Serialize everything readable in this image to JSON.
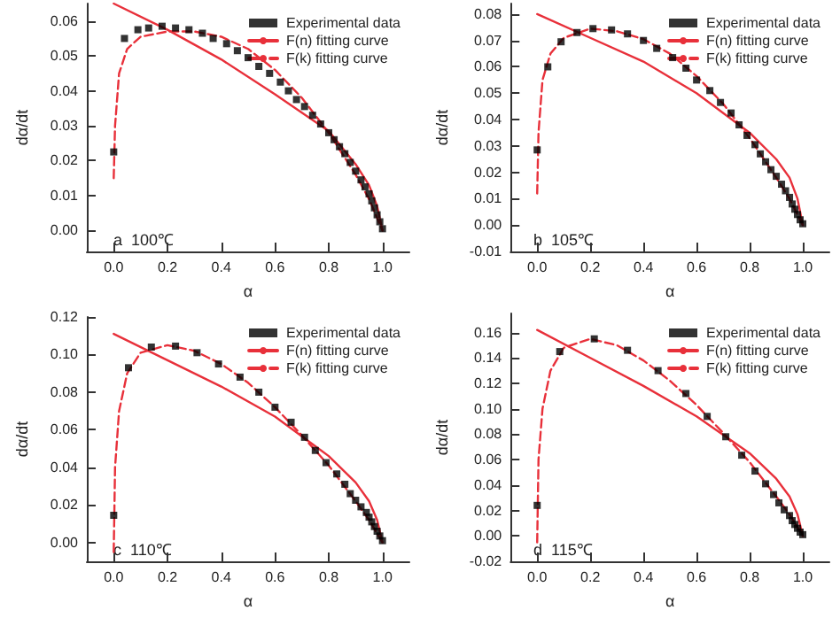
{
  "chart_data": [
    {
      "type": "scatter",
      "xlabel": "α",
      "ylabel": "dα/dt",
      "annotations": [
        "a  100℃"
      ],
      "legend": "top right",
      "grid": false,
      "xlim": [
        -0.1,
        1.1
      ],
      "ylim": [
        -0.006,
        0.065
      ],
      "xticks": [
        {
          "value": 0,
          "label": "0.0"
        },
        {
          "value": 0.2,
          "label": "0.2"
        },
        {
          "value": 0.4,
          "label": "0.4"
        },
        {
          "value": 0.6,
          "label": "0.6"
        },
        {
          "value": 0.8,
          "label": "0.8"
        },
        {
          "value": 1,
          "label": "1.0"
        }
      ],
      "yticks": [
        {
          "value": 0,
          "label": "0.00"
        },
        {
          "value": 0.01,
          "label": "0.01"
        },
        {
          "value": 0.02,
          "label": "0.02"
        },
        {
          "value": 0.03,
          "label": "0.03"
        },
        {
          "value": 0.04,
          "label": "0.04"
        },
        {
          "value": 0.05,
          "label": "0.05"
        },
        {
          "value": 0.06,
          "label": "0.06"
        }
      ],
      "series": [
        {
          "name": "Experimental data",
          "marker": "square",
          "color": "#000000",
          "x": [
            0,
            0.04,
            0.09,
            0.13,
            0.18,
            0.23,
            0.28,
            0.33,
            0.37,
            0.42,
            0.46,
            0.5,
            0.54,
            0.58,
            0.62,
            0.65,
            0.68,
            0.71,
            0.74,
            0.77,
            0.8,
            0.82,
            0.84,
            0.86,
            0.88,
            0.9,
            0.92,
            0.935,
            0.95,
            0.96,
            0.97,
            0.98,
            0.99,
            1.0
          ],
          "values": [
            0.0225,
            0.055,
            0.0575,
            0.058,
            0.0585,
            0.058,
            0.0575,
            0.0565,
            0.055,
            0.0535,
            0.0515,
            0.0495,
            0.047,
            0.045,
            0.0425,
            0.04,
            0.0375,
            0.0355,
            0.033,
            0.0305,
            0.028,
            0.026,
            0.024,
            0.022,
            0.0195,
            0.017,
            0.0145,
            0.0125,
            0.0105,
            0.0085,
            0.0065,
            0.0045,
            0.0025,
            0.0005
          ]
        },
        {
          "name": "F(n) fitting curve",
          "type": "line",
          "marker": "none",
          "line_style": "solid",
          "color": "#e8303a",
          "x": [
            0,
            0.2,
            0.4,
            0.6,
            0.8,
            0.9,
            0.95,
            0.98,
            1.0
          ],
          "values": [
            0.065,
            0.0575,
            0.049,
            0.039,
            0.0285,
            0.019,
            0.013,
            0.007,
            0
          ]
        },
        {
          "name": "F(k) fitting curve",
          "type": "line",
          "marker": "none",
          "line_style": "dashed",
          "color": "#e8303a",
          "x": [
            0,
            0.005,
            0.02,
            0.05,
            0.1,
            0.2,
            0.3,
            0.4,
            0.5,
            0.6,
            0.7,
            0.8,
            0.9,
            0.95,
            1.0
          ],
          "values": [
            0.015,
            0.03,
            0.045,
            0.052,
            0.0555,
            0.057,
            0.057,
            0.0555,
            0.052,
            0.046,
            0.038,
            0.028,
            0.016,
            0.009,
            0
          ]
        }
      ]
    },
    {
      "type": "scatter",
      "xlabel": "α",
      "ylabel": "dα/dt",
      "annotations": [
        "b  105℃"
      ],
      "legend": "top right",
      "grid": false,
      "xlim": [
        -0.1,
        1.1
      ],
      "ylim": [
        -0.01,
        0.084
      ],
      "xticks": [
        {
          "value": 0,
          "label": "0.0"
        },
        {
          "value": 0.2,
          "label": "0.2"
        },
        {
          "value": 0.4,
          "label": "0.4"
        },
        {
          "value": 0.6,
          "label": "0.6"
        },
        {
          "value": 0.8,
          "label": "0.8"
        },
        {
          "value": 1,
          "label": "1.0"
        }
      ],
      "yticks": [
        {
          "value": -0.01,
          "label": "-0.01"
        },
        {
          "value": 0,
          "label": "0.00"
        },
        {
          "value": 0.01,
          "label": "0.01"
        },
        {
          "value": 0.02,
          "label": "0.02"
        },
        {
          "value": 0.03,
          "label": "0.03"
        },
        {
          "value": 0.04,
          "label": "0.04"
        },
        {
          "value": 0.05,
          "label": "0.05"
        },
        {
          "value": 0.06,
          "label": "0.06"
        },
        {
          "value": 0.07,
          "label": "0.07"
        },
        {
          "value": 0.08,
          "label": "0.08"
        }
      ],
      "series": [
        {
          "name": "Experimental data",
          "marker": "square",
          "color": "#000000",
          "x": [
            0,
            0.04,
            0.09,
            0.15,
            0.21,
            0.28,
            0.34,
            0.4,
            0.45,
            0.51,
            0.56,
            0.6,
            0.65,
            0.69,
            0.73,
            0.76,
            0.79,
            0.82,
            0.84,
            0.86,
            0.88,
            0.9,
            0.92,
            0.935,
            0.95,
            0.96,
            0.97,
            0.98,
            0.99,
            1.0
          ],
          "values": [
            0.0285,
            0.06,
            0.0695,
            0.073,
            0.0745,
            0.074,
            0.0725,
            0.07,
            0.067,
            0.0635,
            0.0595,
            0.055,
            0.051,
            0.0465,
            0.0425,
            0.038,
            0.034,
            0.0305,
            0.027,
            0.024,
            0.021,
            0.0185,
            0.0155,
            0.013,
            0.0105,
            0.008,
            0.006,
            0.004,
            0.002,
            0.0005
          ]
        },
        {
          "name": "F(n) fitting curve",
          "type": "line",
          "marker": "none",
          "line_style": "solid",
          "color": "#e8303a",
          "x": [
            0,
            0.2,
            0.4,
            0.6,
            0.8,
            0.9,
            0.95,
            0.98,
            1.0
          ],
          "values": [
            0.08,
            0.071,
            0.062,
            0.05,
            0.035,
            0.025,
            0.018,
            0.01,
            0
          ]
        },
        {
          "name": "F(k) fitting curve",
          "type": "line",
          "marker": "none",
          "line_style": "dashed",
          "color": "#e8303a",
          "x": [
            0,
            0.005,
            0.02,
            0.05,
            0.1,
            0.2,
            0.3,
            0.4,
            0.5,
            0.6,
            0.7,
            0.8,
            0.9,
            0.95,
            1.0
          ],
          "values": [
            0.012,
            0.035,
            0.055,
            0.065,
            0.071,
            0.0745,
            0.0735,
            0.0705,
            0.065,
            0.0565,
            0.046,
            0.033,
            0.018,
            0.01,
            0
          ]
        }
      ]
    },
    {
      "type": "scatter",
      "xlabel": "α",
      "ylabel": "dα/dt",
      "annotations": [
        "c  110℃"
      ],
      "legend": "top right",
      "grid": false,
      "xlim": [
        -0.1,
        1.1
      ],
      "ylim": [
        -0.01,
        0.12
      ],
      "xticks": [
        {
          "value": 0,
          "label": "0.0"
        },
        {
          "value": 0.2,
          "label": "0.2"
        },
        {
          "value": 0.4,
          "label": "0.4"
        },
        {
          "value": 0.6,
          "label": "0.6"
        },
        {
          "value": 0.8,
          "label": "0.8"
        },
        {
          "value": 1,
          "label": "1.0"
        }
      ],
      "yticks": [
        {
          "value": 0,
          "label": "0.00"
        },
        {
          "value": 0.02,
          "label": "0.02"
        },
        {
          "value": 0.04,
          "label": "0.04"
        },
        {
          "value": 0.06,
          "label": "0.06"
        },
        {
          "value": 0.08,
          "label": "0.08"
        },
        {
          "value": 0.1,
          "label": "0.10"
        },
        {
          "value": 0.12,
          "label": "0.12"
        }
      ],
      "series": [
        {
          "name": "Experimental data",
          "marker": "square",
          "color": "#000000",
          "x": [
            0,
            0.055,
            0.14,
            0.23,
            0.31,
            0.39,
            0.47,
            0.54,
            0.6,
            0.66,
            0.71,
            0.75,
            0.79,
            0.83,
            0.86,
            0.88,
            0.9,
            0.92,
            0.94,
            0.95,
            0.96,
            0.97,
            0.98,
            0.99,
            1.0
          ],
          "values": [
            0.0145,
            0.093,
            0.104,
            0.1045,
            0.101,
            0.095,
            0.088,
            0.08,
            0.072,
            0.064,
            0.056,
            0.049,
            0.0425,
            0.0365,
            0.031,
            0.026,
            0.0225,
            0.019,
            0.016,
            0.0135,
            0.011,
            0.0085,
            0.006,
            0.0035,
            0.001
          ]
        },
        {
          "name": "F(n) fitting curve",
          "type": "line",
          "marker": "none",
          "line_style": "solid",
          "color": "#e8303a",
          "x": [
            0,
            0.2,
            0.4,
            0.6,
            0.8,
            0.9,
            0.95,
            0.98,
            1.0
          ],
          "values": [
            0.111,
            0.097,
            0.083,
            0.067,
            0.046,
            0.032,
            0.022,
            0.012,
            0
          ]
        },
        {
          "name": "F(k) fitting curve",
          "type": "line",
          "marker": "none",
          "line_style": "dashed",
          "color": "#e8303a",
          "x": [
            0,
            0.005,
            0.02,
            0.05,
            0.1,
            0.2,
            0.3,
            0.4,
            0.5,
            0.6,
            0.7,
            0.8,
            0.9,
            0.95,
            1.0
          ],
          "values": [
            -0.005,
            0.04,
            0.07,
            0.09,
            0.101,
            0.105,
            0.102,
            0.095,
            0.085,
            0.072,
            0.057,
            0.041,
            0.022,
            0.012,
            0
          ]
        }
      ]
    },
    {
      "type": "scatter",
      "xlabel": "α",
      "ylabel": "dα/dt",
      "annotations": [
        "d  115℃"
      ],
      "legend": "top right",
      "grid": false,
      "xlim": [
        -0.1,
        1.1
      ],
      "ylim": [
        -0.02,
        0.175
      ],
      "xticks": [
        {
          "value": 0,
          "label": "0.0"
        },
        {
          "value": 0.2,
          "label": "0.2"
        },
        {
          "value": 0.4,
          "label": "0.4"
        },
        {
          "value": 0.6,
          "label": "0.6"
        },
        {
          "value": 0.8,
          "label": "0.8"
        },
        {
          "value": 1,
          "label": "1.0"
        }
      ],
      "yticks": [
        {
          "value": -0.02,
          "label": "-0.02"
        },
        {
          "value": 0,
          "label": "0.00"
        },
        {
          "value": 0.02,
          "label": "0.02"
        },
        {
          "value": 0.04,
          "label": "0.04"
        },
        {
          "value": 0.06,
          "label": "0.06"
        },
        {
          "value": 0.08,
          "label": "0.08"
        },
        {
          "value": 0.1,
          "label": "0.10"
        },
        {
          "value": 0.12,
          "label": "0.12"
        },
        {
          "value": 0.14,
          "label": "0.14"
        },
        {
          "value": 0.16,
          "label": "0.16"
        }
      ],
      "series": [
        {
          "name": "Experimental data",
          "marker": "square",
          "color": "#000000",
          "x": [
            0,
            0.085,
            0.215,
            0.34,
            0.455,
            0.56,
            0.64,
            0.71,
            0.77,
            0.82,
            0.86,
            0.89,
            0.91,
            0.93,
            0.95,
            0.96,
            0.97,
            0.98,
            0.99,
            1.0
          ],
          "values": [
            0.024,
            0.145,
            0.155,
            0.146,
            0.13,
            0.112,
            0.094,
            0.078,
            0.0635,
            0.051,
            0.041,
            0.0325,
            0.026,
            0.0205,
            0.016,
            0.012,
            0.009,
            0.006,
            0.003,
            0.001
          ]
        },
        {
          "name": "F(n) fitting curve",
          "type": "line",
          "marker": "none",
          "line_style": "solid",
          "color": "#e8303a",
          "x": [
            0,
            0.2,
            0.4,
            0.6,
            0.8,
            0.9,
            0.95,
            0.98,
            1.0
          ],
          "values": [
            0.162,
            0.14,
            0.118,
            0.094,
            0.065,
            0.045,
            0.031,
            0.017,
            0
          ]
        },
        {
          "name": "F(k) fitting curve",
          "type": "line",
          "marker": "none",
          "line_style": "dashed",
          "color": "#e8303a",
          "x": [
            0,
            0.005,
            0.02,
            0.05,
            0.1,
            0.2,
            0.3,
            0.4,
            0.5,
            0.6,
            0.7,
            0.8,
            0.9,
            0.95,
            1.0
          ],
          "values": [
            -0.005,
            0.06,
            0.1,
            0.13,
            0.148,
            0.155,
            0.15,
            0.138,
            0.122,
            0.103,
            0.081,
            0.058,
            0.031,
            0.017,
            0
          ]
        }
      ]
    }
  ]
}
